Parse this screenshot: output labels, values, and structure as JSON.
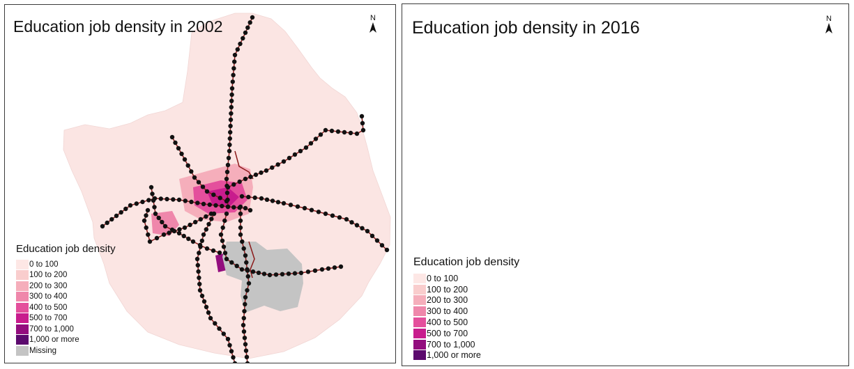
{
  "colors": {
    "region_base": "#fbe5e3",
    "rail": "#8b1a1a",
    "station": "#111111",
    "missing": "#c4c4c4"
  },
  "maps": [
    {
      "title": "Education job density in 2002",
      "north_label": "N",
      "legend": {
        "title": "Education job density",
        "items": [
          {
            "label": "0 to 100",
            "color": "#fde7e5"
          },
          {
            "label": "100 to 200",
            "color": "#f9cdcd"
          },
          {
            "label": "200 to 300",
            "color": "#f5aebb"
          },
          {
            "label": "300 to 400",
            "color": "#ef87ab"
          },
          {
            "label": "400 to 500",
            "color": "#e44f9c"
          },
          {
            "label": "500 to 700",
            "color": "#c81c8d"
          },
          {
            "label": "700 to 1,000",
            "color": "#930d7e"
          },
          {
            "label": "1,000 or more",
            "color": "#5c0a6e"
          },
          {
            "label": "Missing",
            "color": "#c4c4c4"
          }
        ]
      }
    },
    {
      "title": "Education job density in 2016",
      "north_label": "N",
      "legend": {
        "title": "Education job density",
        "items": [
          {
            "label": "0 to 100",
            "color": "#fde7e5"
          },
          {
            "label": "100 to 200",
            "color": "#f9cdcd"
          },
          {
            "label": "200 to 300",
            "color": "#f5aebb"
          },
          {
            "label": "300 to 400",
            "color": "#ef87ab"
          },
          {
            "label": "400 to 500",
            "color": "#e44f9c"
          },
          {
            "label": "500 to 700",
            "color": "#c81c8d"
          },
          {
            "label": "700 to 1,000",
            "color": "#930d7e"
          },
          {
            "label": "1,000 or more",
            "color": "#5c0a6e"
          }
        ]
      }
    }
  ]
}
